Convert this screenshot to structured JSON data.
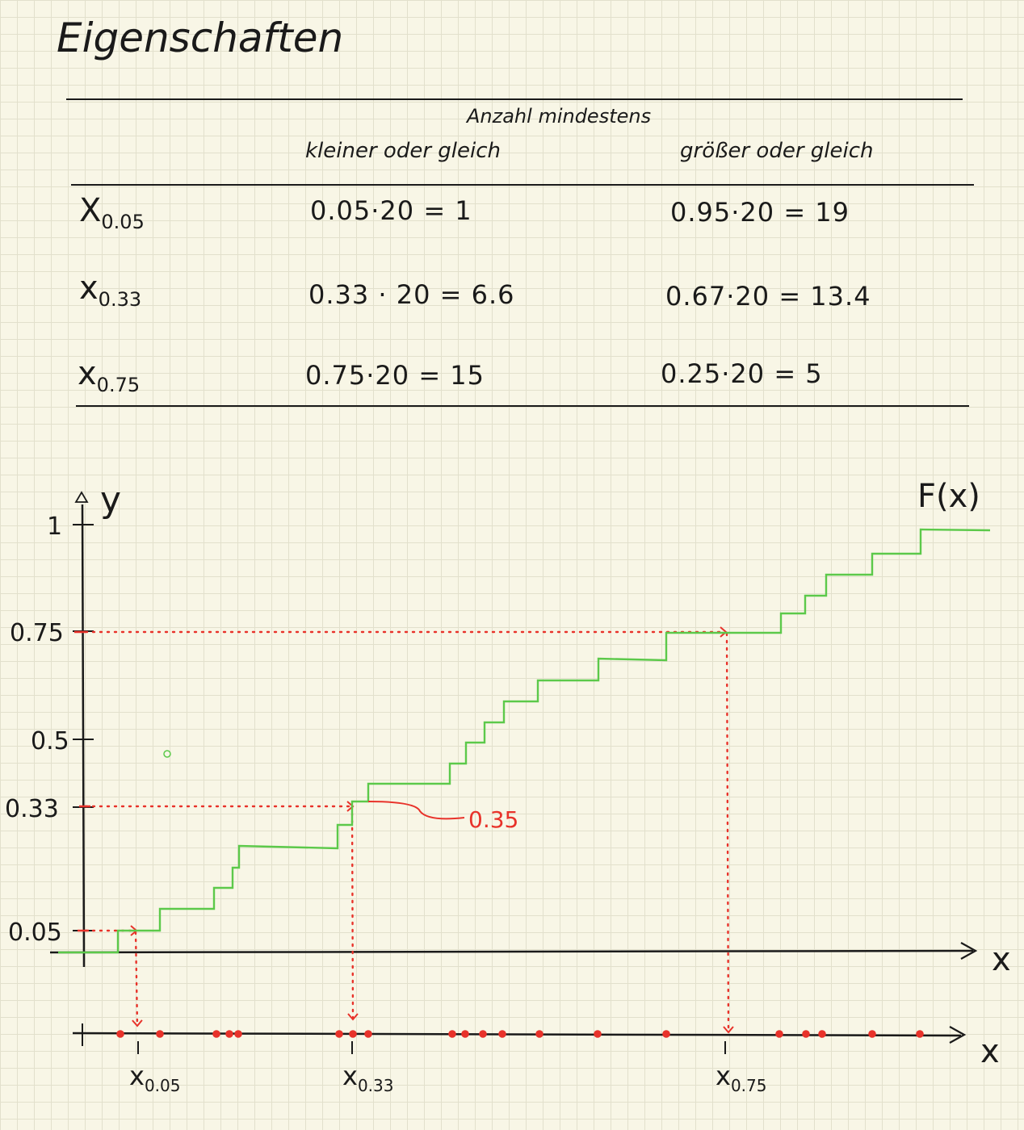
{
  "title": "Eigenschaften",
  "table": {
    "group_header": "Anzahl mindestens",
    "col_headers": [
      "kleiner oder gleich",
      "größer oder gleich"
    ],
    "rows": [
      {
        "label": "X",
        "sub": "0.05",
        "le": "0.05·20 = 1",
        "ge": "0.95·20 = 19"
      },
      {
        "label": "x",
        "sub": "0.33",
        "le": "0.33 · 20 = 6.6",
        "ge": "0.67·20 = 13.4"
      },
      {
        "label": "x",
        "sub": "0.75",
        "le": "0.75·20 = 15",
        "ge": "0.25·20 = 5"
      }
    ]
  },
  "chart_data": {
    "type": "line",
    "function_label": "F(x)",
    "y_axis_label": "y",
    "x_axis_label": "x",
    "y_ticks": [
      "1",
      "0.75",
      "0.5",
      "0.33",
      "0.05"
    ],
    "annotation": "0.35",
    "quantile_labels": [
      {
        "base": "x",
        "sub": "0.05"
      },
      {
        "base": "x",
        "sub": "0.33"
      },
      {
        "base": "x",
        "sub": "0.75"
      }
    ],
    "n": 20,
    "quantiles": [
      0.05,
      0.33,
      0.75
    ]
  },
  "colors": {
    "ink": "#1a1a1a",
    "step_function": "#5cc94a",
    "annotation": "#e8322a"
  }
}
